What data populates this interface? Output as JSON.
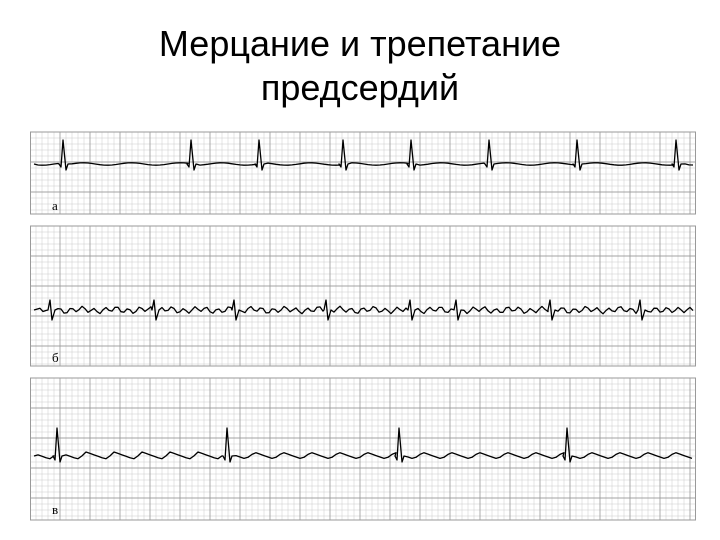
{
  "slide": {
    "title_line1": "Мерцание и трепетание",
    "title_line2": "предсердий"
  },
  "figure": {
    "strips": [
      {
        "label": "а",
        "rhythm": "atrial-fibrillation"
      },
      {
        "label": "б",
        "rhythm": "atrial-fibrillation-small-wave"
      },
      {
        "label": "в",
        "rhythm": "atrial-flutter"
      }
    ]
  },
  "colors": {
    "grid": "#9a9a9a",
    "trace": "#000000",
    "background": "#ffffff"
  }
}
